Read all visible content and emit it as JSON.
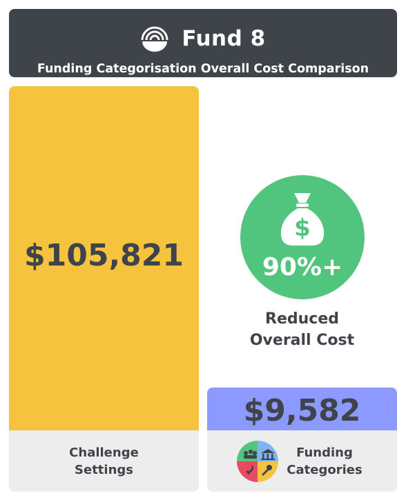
{
  "header": {
    "fund_name": "Fund 8",
    "subtitle": "Funding Categorisation Overall Cost Comparison",
    "logo_icon": "rainbow-arch-icon",
    "background_color": "#3f434a"
  },
  "comparison": {
    "reduction_label": "90%+",
    "reduced_text": "Reduced\nOverall Cost",
    "icon": "money-bag-dollar-icon",
    "circle_color": "#51c47e"
  },
  "chart_data": {
    "type": "bar",
    "categories": [
      "Challenge Settings",
      "Funding Categories"
    ],
    "values": [
      105821,
      9582
    ],
    "value_labels": [
      "$105,821",
      "$9,582"
    ],
    "colors": [
      "#f5c33e",
      "#8c9aff"
    ],
    "title": "Funding Categorisation Overall Cost Comparison",
    "xlabel": "",
    "ylabel": "",
    "ylim": [
      0,
      105821
    ],
    "grid": false,
    "legend": "none"
  },
  "labels": {
    "left": "Challenge\nSettings",
    "right": "Funding\nCategories",
    "right_icon": "funding-categories-quadrant-icon"
  }
}
